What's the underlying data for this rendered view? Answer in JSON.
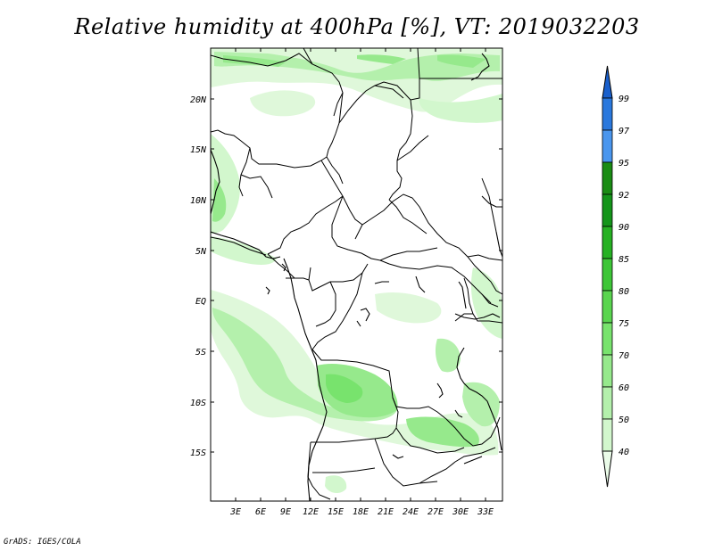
{
  "title": "Relative humidity at 400hPa [%], VT: 2019032203",
  "credit": "GrADS: IGES/COLA",
  "map": {
    "lat_labels": [
      "20N",
      "15N",
      "10N",
      "5N",
      "EQ",
      "5S",
      "10S",
      "15S"
    ],
    "lon_labels": [
      "3E",
      "6E",
      "9E",
      "12E",
      "15E",
      "18E",
      "21E",
      "24E",
      "27E",
      "30E",
      "33E"
    ]
  },
  "colorbar": {
    "levels": [
      "40",
      "50",
      "60",
      "70",
      "75",
      "80",
      "85",
      "90",
      "92",
      "95",
      "97",
      "99"
    ],
    "colors": [
      "#eafbe8",
      "#d2f7cd",
      "#b4f0ac",
      "#96e98c",
      "#78e36d",
      "#5ad54f",
      "#3dc637",
      "#26b123",
      "#14951a",
      "#1a8c14",
      "#4a96ee",
      "#2a78dd",
      "#1a60cc"
    ]
  },
  "legend_colors": {
    "g40": "#eafbe8",
    "g50": "#d2f7cd",
    "g60": "#b4f0ac",
    "g70": "#96e98c",
    "g75": "#78e36d",
    "g80": "#5ad54f",
    "g85": "#3dc637",
    "g90": "#26b123",
    "g92": "#14951a",
    "g95": "#1a8c14",
    "b97": "#4a96ee",
    "b99": "#2a78dd",
    "b100": "#1a60cc"
  }
}
